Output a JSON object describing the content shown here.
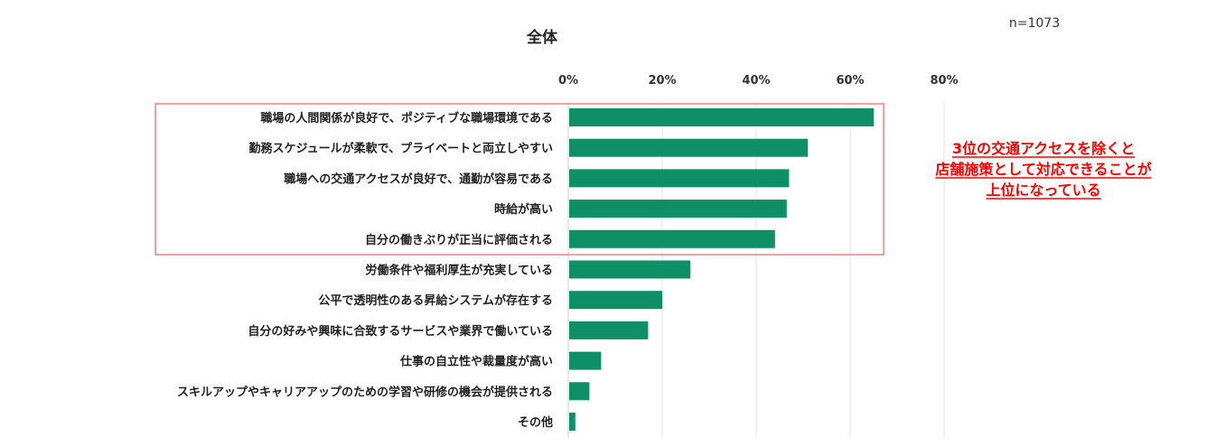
{
  "chart_data": {
    "type": "bar",
    "orientation": "horizontal",
    "title": "全体",
    "sample_size": "n=1073",
    "categories": [
      "職場の人間関係が良好で、ポジティブな職場環境である",
      "勤務スケジュールが柔軟で、プライベートと両立しやすい",
      "職場への交通アクセスが良好で、通勤が容易である",
      "時給が高い",
      "自分の働きぶりが正当に評価される",
      "労働条件や福利厚生が充実している",
      "公平で透明性のある昇給システムが存在する",
      "自分の好みや興味に合致するサービスや業界で働いている",
      "仕事の自立性や裁量度が高い",
      "スキルアップやキャリアアップのための学習や研修の機会が提供される",
      "その他"
    ],
    "values": [
      65,
      51,
      47,
      46.5,
      44,
      26,
      20,
      17,
      7,
      4.5,
      1.5
    ],
    "xlim": [
      0,
      80
    ],
    "x_ticks": [
      "0%",
      "20%",
      "40%",
      "60%",
      "80%"
    ],
    "x_tick_values": [
      0,
      20,
      40,
      60,
      80
    ],
    "bar_color": "#0e8f66",
    "grid": true,
    "highlighted_categories": [
      0,
      1,
      2,
      3,
      4
    ],
    "highlight_color": "#f08080",
    "annotation": {
      "lines": [
        "3位の交通アクセスを除くと",
        "店舗施策として対応できることが",
        "上位になっている"
      ],
      "color": "#ff0000"
    }
  }
}
